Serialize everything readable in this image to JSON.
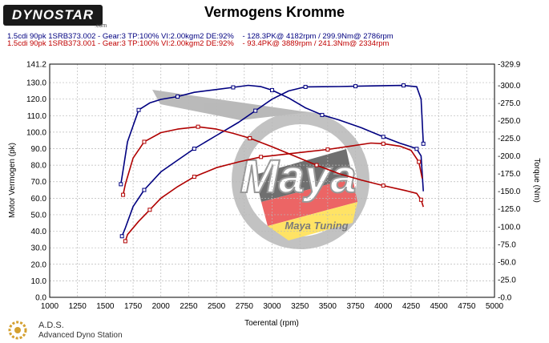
{
  "header": {
    "logo_text": "DYNOSTAR",
    "logo_sub": ".com",
    "title": "Vermogens Kromme"
  },
  "legend": [
    "1.5cdi 90pk 1SRB373.002 - Gear:3 TP:100% VI:2.00kgm2 DE:92%    - 128.3PK@ 4182rpm / 299.9Nm@ 2786rpm",
    "1.5cdi 90pk 1SRB373.001 - Gear:3 TP:100% VI:2.00kgm2 DE:92%    - 93.4PK@ 3889rpm / 241.3Nm@ 2334rpm"
  ],
  "watermark": {
    "brand": "Maya",
    "subtitle": "Maya Tuning"
  },
  "footer": {
    "name": "A.D.S.",
    "sub": "Advanced Dyno Station"
  },
  "colors": {
    "blue": "#000080",
    "red": "#b00000",
    "grid": "#b8b8b8"
  },
  "chart_data": {
    "type": "line",
    "xlabel": "Toerental (rpm)",
    "ylabel": "Motor Vermogen (pk)",
    "y2label": "Torque (Nm)",
    "xlim": [
      1000,
      5000
    ],
    "ylim": [
      0,
      141.2
    ],
    "y2lim": [
      0,
      329.9
    ],
    "grid": true,
    "x_ticks": [
      1000,
      1250,
      1500,
      1750,
      2000,
      2250,
      2500,
      2750,
      3000,
      3250,
      3500,
      3750,
      4000,
      4250,
      4500,
      4750,
      5000
    ],
    "y_ticks": [
      "0.0",
      "10.0",
      "20.0",
      "30.0",
      "40.0",
      "50.0",
      "60.0",
      "70.0",
      "80.0",
      "90.0",
      "100.0",
      "110.0",
      "120.0",
      "130.0",
      "141.2"
    ],
    "y2_ticks": [
      {
        "v": 0,
        "label": "-0.0"
      },
      {
        "v": 25,
        "label": "-25.0"
      },
      {
        "v": 50,
        "label": "-50.0"
      },
      {
        "v": 75,
        "label": "-75.0"
      },
      {
        "v": 100,
        "label": "-100.0"
      },
      {
        "v": 125,
        "label": "-125.0"
      },
      {
        "v": 150,
        "label": "-150.0"
      },
      {
        "v": 175,
        "label": "-175.0"
      },
      {
        "v": 200,
        "label": "-200.0"
      },
      {
        "v": 225,
        "label": "-225.0"
      },
      {
        "v": 250,
        "label": "-250.0"
      },
      {
        "v": 275,
        "label": "-275.0"
      },
      {
        "v": 300,
        "label": "-300.0"
      },
      {
        "v": 329.9,
        "label": "-329.9"
      }
    ],
    "series": [
      {
        "name": "1.5cdi 90pk 1SRB373.002 - Power",
        "axis": "left",
        "color": "#000080",
        "x": [
          1650,
          1680,
          1750,
          1850,
          2000,
          2150,
          2300,
          2500,
          2700,
          2850,
          3000,
          3150,
          3300,
          3450,
          3600,
          3750,
          3900,
          4050,
          4182,
          4300,
          4340,
          4360
        ],
        "y": [
          37,
          42,
          55,
          65,
          76,
          83,
          90,
          98,
          106,
          113,
          120,
          125,
          127.4,
          127.5,
          127.6,
          127.8,
          128,
          128.2,
          128.3,
          127.5,
          120,
          93
        ]
      },
      {
        "name": "1.5cdi 90pk 1SRB373.002 - Torque",
        "axis": "right",
        "color": "#000080",
        "x": [
          1640,
          1660,
          1700,
          1800,
          1900,
          2000,
          2150,
          2300,
          2500,
          2650,
          2786,
          2900,
          3000,
          3150,
          3300,
          3450,
          3600,
          3800,
          4000,
          4150,
          4250,
          4300,
          4340,
          4360
        ],
        "y": [
          160,
          180,
          220,
          265,
          275,
          280,
          284,
          290,
          294,
          297,
          299.9,
          298,
          293,
          282,
          268,
          258,
          251,
          240,
          227,
          218,
          213,
          210,
          200,
          150
        ]
      },
      {
        "name": "1.5cdi 90pk 1SRB373.001 - Power",
        "axis": "left",
        "color": "#b00000",
        "x": [
          1680,
          1700,
          1800,
          1900,
          2000,
          2150,
          2300,
          2500,
          2700,
          2900,
          3100,
          3300,
          3500,
          3700,
          3889,
          4000,
          4150,
          4250,
          4320,
          4350
        ],
        "y": [
          34,
          38,
          46,
          53,
          60,
          67,
          73,
          78.5,
          82,
          85,
          86.5,
          88,
          89.5,
          91.5,
          93.4,
          93,
          91.5,
          89,
          82,
          72
        ]
      },
      {
        "name": "1.5cdi 90pk 1SRB373.001 - Torque",
        "axis": "right",
        "color": "#b00000",
        "x": [
          1660,
          1680,
          1750,
          1850,
          2000,
          2150,
          2334,
          2500,
          2650,
          2800,
          3000,
          3200,
          3400,
          3600,
          3800,
          4000,
          4200,
          4300,
          4340,
          4360
        ],
        "y": [
          145,
          160,
          197,
          220,
          233,
          238,
          241.3,
          238,
          232,
          225,
          213,
          200,
          187,
          175,
          166,
          158,
          151,
          147,
          138,
          128
        ]
      }
    ]
  }
}
